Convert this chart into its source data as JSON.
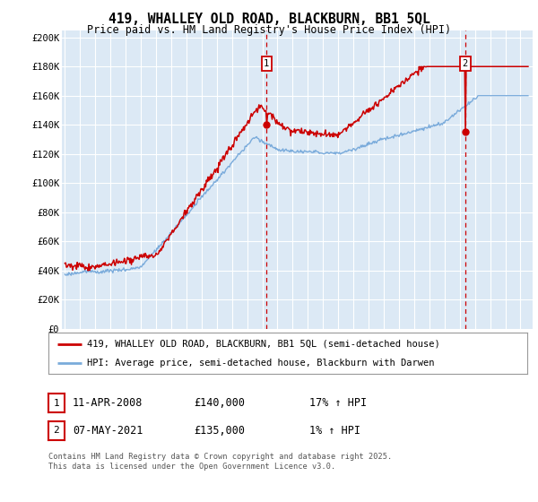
{
  "title": "419, WHALLEY OLD ROAD, BLACKBURN, BB1 5QL",
  "subtitle": "Price paid vs. HM Land Registry's House Price Index (HPI)",
  "legend_line1": "419, WHALLEY OLD ROAD, BLACKBURN, BB1 5QL (semi-detached house)",
  "legend_line2": "HPI: Average price, semi-detached house, Blackburn with Darwen",
  "footnote": "Contains HM Land Registry data © Crown copyright and database right 2025.\nThis data is licensed under the Open Government Licence v3.0.",
  "annotation1_date": "11-APR-2008",
  "annotation1_price": "£140,000",
  "annotation1_hpi": "17% ↑ HPI",
  "annotation2_date": "07-MAY-2021",
  "annotation2_price": "£135,000",
  "annotation2_hpi": "1% ↑ HPI",
  "ylim": [
    0,
    205000
  ],
  "yticks": [
    0,
    20000,
    40000,
    60000,
    80000,
    100000,
    120000,
    140000,
    160000,
    180000,
    200000
  ],
  "ytick_labels": [
    "£0",
    "£20K",
    "£40K",
    "£60K",
    "£80K",
    "£100K",
    "£120K",
    "£140K",
    "£160K",
    "£180K",
    "£200K"
  ],
  "bg_color": "#dce9f5",
  "grid_color": "#ffffff",
  "price_color": "#cc0000",
  "hpi_color": "#7aabdb",
  "vline_color": "#cc0000",
  "marker1_x": 2008.28,
  "marker1_y": 140000,
  "marker2_x": 2021.36,
  "marker2_y": 135000,
  "xmin": 1994.8,
  "xmax": 2025.8
}
